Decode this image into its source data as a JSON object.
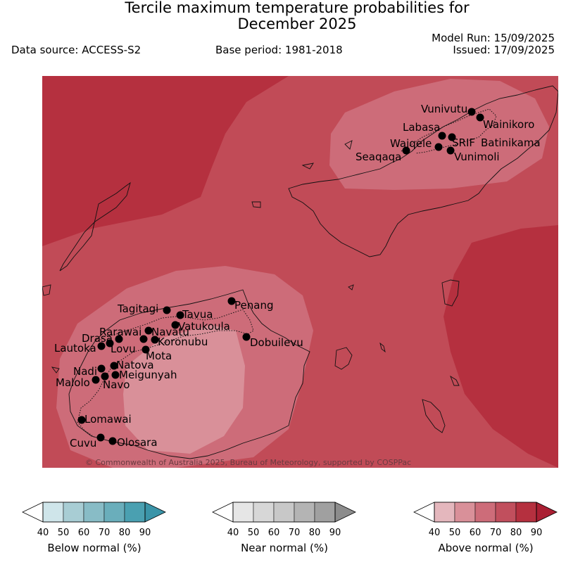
{
  "title": {
    "line1": "Tercile maximum temperature probabilities for",
    "line2": "December 2025"
  },
  "header": {
    "data_source": "Data source: ACCESS-S2",
    "base_period": "Base period: 1981-2018",
    "model_run": "Model Run: 15/09/2025",
    "issued": "Issued: 17/09/2025"
  },
  "map": {
    "copyright": "© Commonwealth of Australia 2025, Bureau of Meteorology, supported by COSPPac",
    "places": [
      {
        "name": "Vunivutu"
      },
      {
        "name": "Wainikoro"
      },
      {
        "name": "Labasa"
      },
      {
        "name": "SRIF"
      },
      {
        "name": "Batinikama"
      },
      {
        "name": "Waiqele"
      },
      {
        "name": "Vunimoli"
      },
      {
        "name": "Seaqaqa"
      },
      {
        "name": "Penang"
      },
      {
        "name": "Tagitagi"
      },
      {
        "name": "Tavua"
      },
      {
        "name": "Vatukoula"
      },
      {
        "name": "Rarawai"
      },
      {
        "name": "Navatu"
      },
      {
        "name": "Drasa"
      },
      {
        "name": "Koronubu"
      },
      {
        "name": "Lautoka"
      },
      {
        "name": "Lovu"
      },
      {
        "name": "Dobuilevu"
      },
      {
        "name": "Mota"
      },
      {
        "name": "Natova"
      },
      {
        "name": "Nadi"
      },
      {
        "name": "Meigunyah"
      },
      {
        "name": "Malolo"
      },
      {
        "name": "Navo"
      },
      {
        "name": "Lomawai"
      },
      {
        "name": "Cuvu"
      },
      {
        "name": "Olosara"
      }
    ]
  },
  "legends": [
    {
      "label": "Below normal (%)",
      "ticks": [
        "40",
        "50",
        "60",
        "70",
        "80",
        "90"
      ],
      "colors": [
        "#cfe5ea",
        "#a8cdd4",
        "#88bcc6",
        "#6aaebb",
        "#4aa0b1"
      ],
      "over": "#3a94a8"
    },
    {
      "label": "Near normal (%)",
      "ticks": [
        "40",
        "50",
        "60",
        "70",
        "80",
        "90"
      ],
      "colors": [
        "#e6e6e6",
        "#d7d7d7",
        "#c8c8c8",
        "#b4b4b4",
        "#a0a0a0"
      ],
      "over": "#8c8c8c"
    },
    {
      "label": "Above normal (%)",
      "ticks": [
        "40",
        "50",
        "60",
        "70",
        "80",
        "90"
      ],
      "colors": [
        "#e4b7bd",
        "#d99099",
        "#cd6c79",
        "#c14f5d",
        "#b5303f"
      ],
      "over": "#aa1f33"
    }
  ],
  "colors": {
    "above_80": "#b5303f",
    "above_70": "#c14b57",
    "above_60": "#cd6c79",
    "above_50": "#d99099"
  }
}
